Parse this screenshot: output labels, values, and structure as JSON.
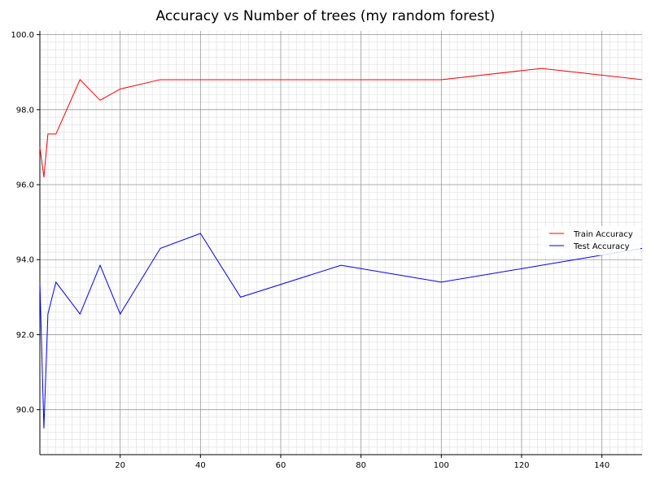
{
  "chart_data": {
    "type": "line",
    "title": "Accuracy vs Number of trees (my random forest)",
    "xlabel": "",
    "ylabel": "",
    "xlim": [
      0,
      150
    ],
    "ylim": [
      88.8,
      100.1
    ],
    "x_ticks": [
      20,
      40,
      60,
      80,
      100,
      120,
      140
    ],
    "y_ticks": [
      90.0,
      92.0,
      94.0,
      96.0,
      98.0,
      100.0
    ],
    "x_minor_step": 2,
    "y_minor_step": 0.2,
    "grid": true,
    "legend_position": "right",
    "series": [
      {
        "name": "Train Accuracy",
        "color": "#ff0000",
        "points": [
          [
            0,
            97.0
          ],
          [
            1,
            96.2
          ],
          [
            2,
            97.35
          ],
          [
            4,
            97.35
          ],
          [
            10,
            98.8
          ],
          [
            15,
            98.25
          ],
          [
            20,
            98.55
          ],
          [
            30,
            98.8
          ],
          [
            40,
            98.8
          ],
          [
            50,
            98.8
          ],
          [
            75,
            98.8
          ],
          [
            100,
            98.8
          ],
          [
            125,
            99.1
          ],
          [
            150,
            98.8
          ]
        ]
      },
      {
        "name": "Test Accuracy",
        "color": "#0000ff",
        "points": [
          [
            0,
            93.4
          ],
          [
            1,
            89.5
          ],
          [
            2,
            92.55
          ],
          [
            4,
            93.4
          ],
          [
            10,
            92.55
          ],
          [
            15,
            93.85
          ],
          [
            20,
            92.55
          ],
          [
            30,
            94.3
          ],
          [
            40,
            94.7
          ],
          [
            50,
            93.0
          ],
          [
            75,
            93.85
          ],
          [
            100,
            93.4
          ],
          [
            125,
            93.85
          ],
          [
            150,
            94.3
          ]
        ]
      }
    ]
  }
}
